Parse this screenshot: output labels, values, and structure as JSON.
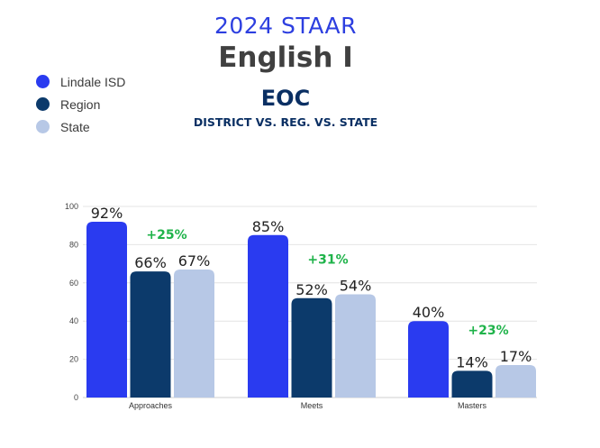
{
  "header": {
    "year_title": "2024 STAAR",
    "subject": "English I",
    "exam": "EOC",
    "comparison": "DISTRICT VS. REG. VS. STATE"
  },
  "legend": [
    {
      "label": "Lindale ISD",
      "color": "#2a3bf0"
    },
    {
      "label": "Region",
      "color": "#0c3a6b"
    },
    {
      "label": "State",
      "color": "#b7c8e6"
    }
  ],
  "chart_data": {
    "type": "bar",
    "categories": [
      "Approaches",
      "Meets",
      "Masters"
    ],
    "series": [
      {
        "name": "Lindale ISD",
        "values": [
          92,
          85,
          40
        ],
        "labels": [
          "92%",
          "85%",
          "40%"
        ],
        "color": "#2a3bf0"
      },
      {
        "name": "Region",
        "values": [
          66,
          52,
          14
        ],
        "labels": [
          "66%",
          "52%",
          "14%"
        ],
        "color": "#0c3a6b"
      },
      {
        "name": "State",
        "values": [
          67,
          54,
          17
        ],
        "labels": [
          "67%",
          "54%",
          "17%"
        ],
        "color": "#b7c8e6"
      }
    ],
    "annotations": [
      "+25%",
      "+31%",
      "+23%"
    ],
    "annotation_color": "#1fb34a",
    "ylim": [
      0,
      100
    ],
    "yticks": [
      0,
      20,
      40,
      60,
      80,
      100
    ],
    "grid": true
  }
}
